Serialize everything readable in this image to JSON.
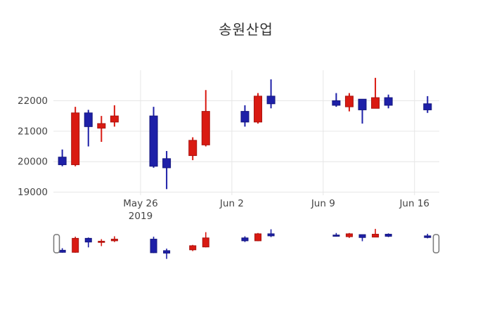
{
  "title": "송원산업",
  "colors": {
    "up": "#d91a12",
    "up_border": "#a81410",
    "down": "#1e20a8",
    "down_border": "#14167d",
    "grid": "#e6e6e6",
    "tick_text": "#444444",
    "title_text": "#303030",
    "handle_fill": "#ffffff",
    "handle_border": "#777777",
    "background": "#ffffff"
  },
  "chart_data": {
    "type": "candlestick",
    "title": "송원산업",
    "legend": "none",
    "grid": true,
    "up_means": "close >= open (red, Korean convention)",
    "down_means": "close < open (blue, Korean convention)",
    "x_axis": {
      "unit": "date",
      "xlim_days_rel_may26": [
        -6.68,
        22.9
      ],
      "ticks": [
        {
          "label": "May 26",
          "sublabel": "2019",
          "day": 0
        },
        {
          "label": "Jun 2",
          "sublabel": "",
          "day": 7
        },
        {
          "label": "Jun 9",
          "sublabel": "",
          "day": 14
        },
        {
          "label": "Jun 16",
          "sublabel": "",
          "day": 21
        }
      ]
    },
    "y_axis": {
      "ticks": [
        "19000",
        "20000",
        "21000",
        "22000"
      ],
      "tick_values": [
        19000,
        20000,
        21000,
        22000
      ],
      "ylim": [
        18900,
        23000
      ]
    },
    "candles": [
      {
        "date": "May 20",
        "day": -6,
        "open": 20150,
        "high": 20400,
        "low": 19850,
        "close": 19900
      },
      {
        "date": "May 21",
        "day": -5,
        "open": 19900,
        "high": 21800,
        "low": 19850,
        "close": 21600
      },
      {
        "date": "May 22",
        "day": -4,
        "open": 21600,
        "high": 21700,
        "low": 20500,
        "close": 21150
      },
      {
        "date": "May 23",
        "day": -3,
        "open": 21100,
        "high": 21500,
        "low": 20650,
        "close": 21250
      },
      {
        "date": "May 24",
        "day": -2,
        "open": 21300,
        "high": 21850,
        "low": 21150,
        "close": 21500
      },
      {
        "date": "May 27",
        "day": 1,
        "open": 21500,
        "high": 21800,
        "low": 19800,
        "close": 19850
      },
      {
        "date": "May 28",
        "day": 2,
        "open": 20100,
        "high": 20350,
        "low": 19100,
        "close": 19800
      },
      {
        "date": "May 30",
        "day": 4,
        "open": 20200,
        "high": 20800,
        "low": 20050,
        "close": 20700
      },
      {
        "date": "May 31",
        "day": 5,
        "open": 20550,
        "high": 22350,
        "low": 20500,
        "close": 21650
      },
      {
        "date": "Jun 3",
        "day": 8,
        "open": 21650,
        "high": 21850,
        "low": 21150,
        "close": 21300
      },
      {
        "date": "Jun 4",
        "day": 9,
        "open": 21300,
        "high": 22250,
        "low": 21250,
        "close": 22150
      },
      {
        "date": "Jun 5",
        "day": 10,
        "open": 22150,
        "high": 22700,
        "low": 21750,
        "close": 21900
      },
      {
        "date": "Jun 10",
        "day": 15,
        "open": 22000,
        "high": 22250,
        "low": 21800,
        "close": 21850
      },
      {
        "date": "Jun 11",
        "day": 16,
        "open": 21800,
        "high": 22250,
        "low": 21650,
        "close": 22150
      },
      {
        "date": "Jun 12",
        "day": 17,
        "open": 22050,
        "high": 22050,
        "low": 21250,
        "close": 21700
      },
      {
        "date": "Jun 13",
        "day": 18,
        "open": 21750,
        "high": 22750,
        "low": 21750,
        "close": 22100
      },
      {
        "date": "Jun 14",
        "day": 19,
        "open": 22100,
        "high": 22200,
        "low": 21750,
        "close": 21850
      },
      {
        "date": "Jun 17",
        "day": 22,
        "open": 21900,
        "high": 22150,
        "low": 21600,
        "close": 21700
      }
    ],
    "rangeslider": {
      "visible": true,
      "handles": [
        "left",
        "right"
      ]
    }
  }
}
